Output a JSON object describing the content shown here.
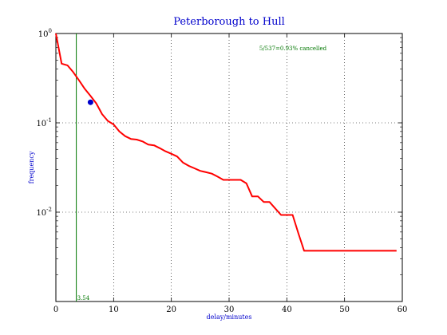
{
  "chart_data": {
    "type": "line",
    "title": "Peterborough to Hull",
    "xlabel": "delay/minutes",
    "ylabel": "frequency",
    "xlim": [
      0,
      60
    ],
    "ylim": [
      0.001,
      1
    ],
    "yscale": "log",
    "grid": true,
    "x_ticks": [
      0,
      10,
      20,
      30,
      40,
      50,
      60
    ],
    "x_tick_labels": [
      "0",
      "10",
      "20",
      "30",
      "40",
      "50",
      "60"
    ],
    "y_ticks": [
      {
        "value": 1,
        "base": "10",
        "exp": "0"
      },
      {
        "value": 0.1,
        "base": "10",
        "exp": "-1"
      },
      {
        "value": 0.01,
        "base": "10",
        "exp": "-2"
      }
    ],
    "series": [
      {
        "color": "#ff0000",
        "x": [
          0,
          1,
          2,
          3,
          4,
          5,
          6,
          7,
          8,
          9,
          10,
          11,
          12,
          13,
          14,
          15,
          16,
          17,
          18,
          19,
          20,
          21,
          22,
          23,
          24,
          25,
          26,
          27,
          28,
          29,
          30,
          31,
          32,
          33,
          34,
          35,
          36,
          37,
          38,
          39,
          40,
          41,
          42,
          43,
          44,
          45,
          50,
          55,
          59
        ],
        "y": [
          1.0,
          0.46,
          0.44,
          0.37,
          0.3,
          0.24,
          0.2,
          0.165,
          0.125,
          0.105,
          0.096,
          0.08,
          0.071,
          0.066,
          0.065,
          0.062,
          0.057,
          0.056,
          0.052,
          0.048,
          0.045,
          0.042,
          0.036,
          0.033,
          0.031,
          0.029,
          0.028,
          0.027,
          0.025,
          0.023,
          0.023,
          0.023,
          0.023,
          0.021,
          0.015,
          0.015,
          0.013,
          0.013,
          0.011,
          0.0093,
          0.0093,
          0.0093,
          0.0058,
          0.0037,
          0.0037,
          0.0037,
          0.0037,
          0.0037,
          0.0037
        ]
      }
    ],
    "marker": {
      "x": 6,
      "y": 0.17,
      "color": "#0000cc"
    },
    "vline": {
      "x": 3.54,
      "label": "3.54",
      "color": "#007700"
    },
    "annotation": {
      "text": "5/537=0.93% cancelled",
      "color": "#007700"
    }
  }
}
